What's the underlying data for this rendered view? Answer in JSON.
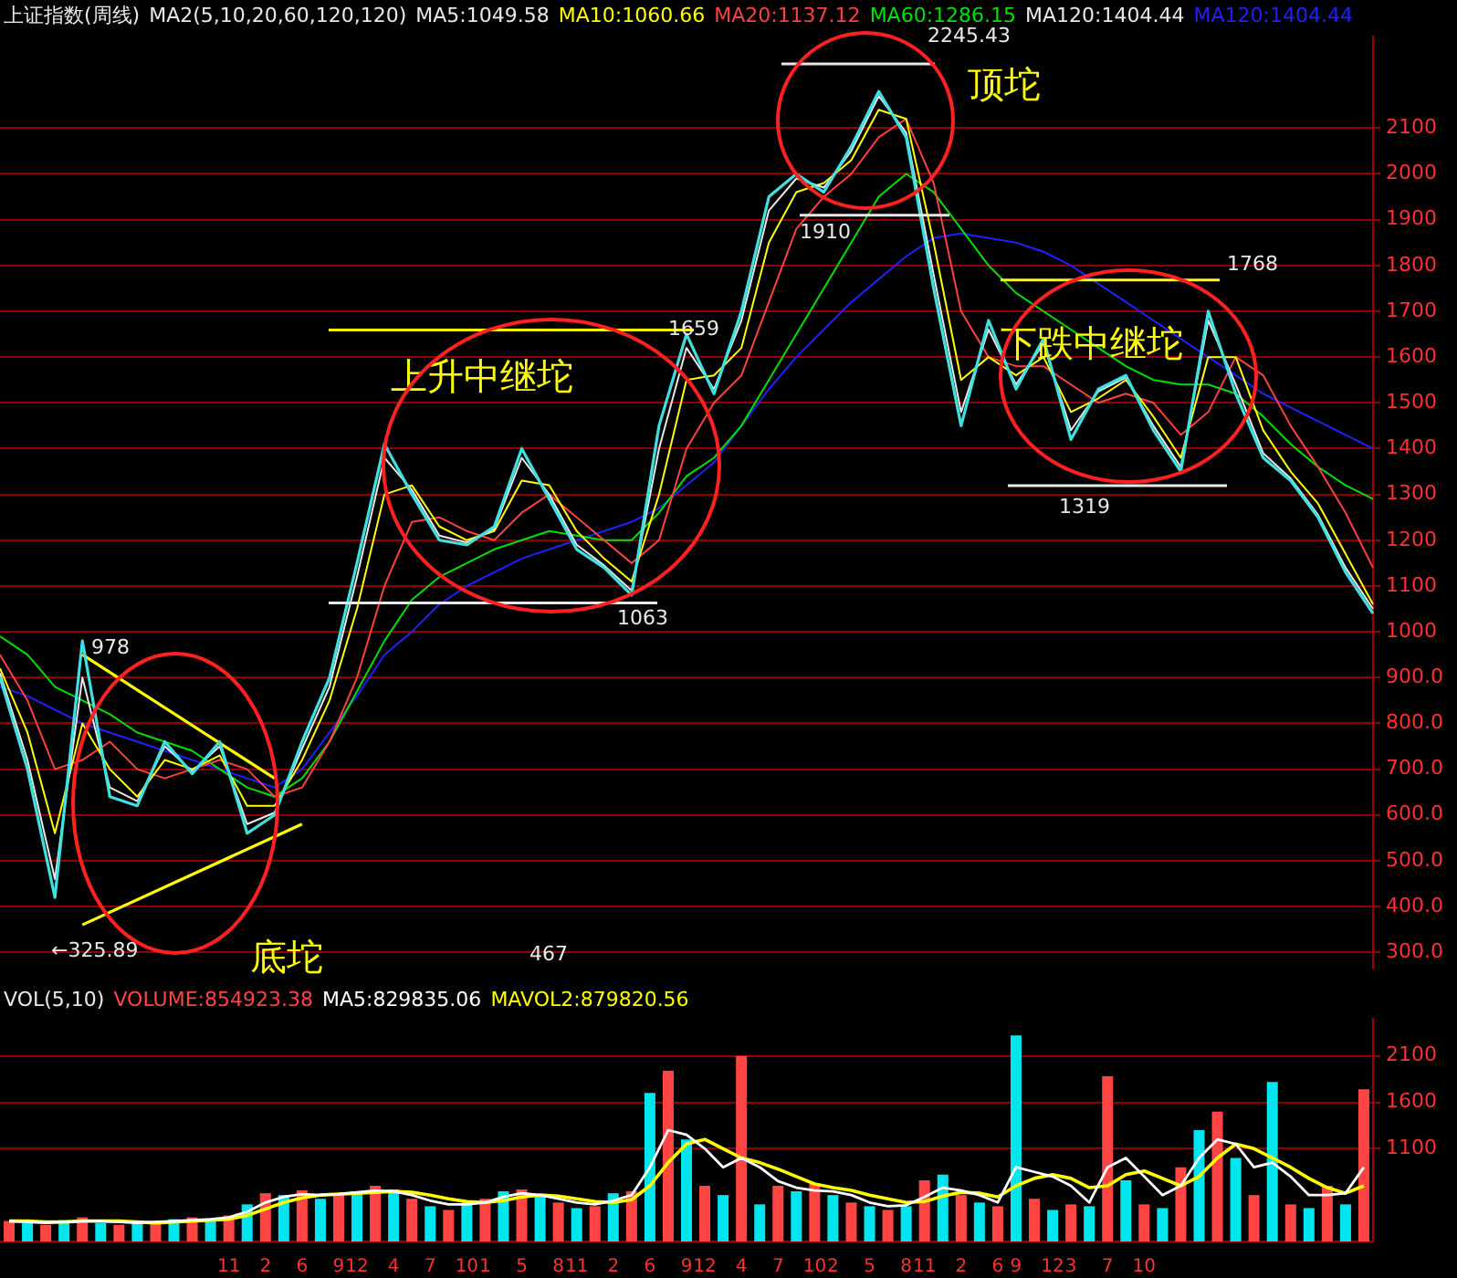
{
  "chart_data": [
    {
      "type": "line",
      "title": "上证指数(周线)",
      "subtitle": "MA2(5,10,20,60,120,120)",
      "categories": [
        null,
        null,
        null,
        null,
        null,
        null,
        null,
        null,
        null,
        null,
        null,
        null,
        null,
        null,
        null,
        null,
        null,
        null,
        null,
        null,
        null,
        null,
        null,
        null,
        null,
        null,
        null,
        null,
        null,
        null,
        null,
        null,
        null,
        null,
        null,
        null,
        null,
        null,
        null,
        null,
        null,
        null,
        null,
        null,
        null,
        null,
        null,
        null,
        null,
        null,
        null
      ],
      "series": [
        {
          "color": "#40e0e0",
          "values": [
            900,
            700,
            420,
            980,
            640,
            620,
            760,
            690,
            760,
            560,
            600,
            760,
            900,
            1150,
            1410,
            1300,
            1200,
            1190,
            1230,
            1400,
            1290,
            1180,
            1140,
            1080,
            1450,
            1650,
            1520,
            1700,
            1950,
            2000,
            1960,
            2060,
            2180,
            2080,
            1750,
            1450,
            1680,
            1530,
            1640,
            1420,
            1530,
            1560,
            1440,
            1350,
            1700,
            1520,
            1380,
            1330,
            1250,
            1130,
            1040
          ]
        },
        {
          "name": "MA5:1049.58",
          "color": "#e8e8e8",
          "values": [
            910,
            720,
            460,
            900,
            660,
            630,
            750,
            695,
            750,
            580,
            605,
            745,
            880,
            1120,
            1380,
            1310,
            1210,
            1195,
            1225,
            1380,
            1300,
            1190,
            1145,
            1090,
            1400,
            1620,
            1530,
            1680,
            1920,
            1990,
            1970,
            2050,
            2170,
            2090,
            1780,
            1480,
            1660,
            1540,
            1630,
            1440,
            1525,
            1555,
            1450,
            1360,
            1680,
            1540,
            1390,
            1335,
            1255,
            1140,
            1050
          ]
        },
        {
          "name": "MA10:1060.66",
          "color": "#ffff00",
          "values": [
            920,
            780,
            560,
            800,
            700,
            640,
            720,
            700,
            730,
            620,
            620,
            720,
            850,
            1050,
            1300,
            1320,
            1230,
            1200,
            1220,
            1330,
            1320,
            1220,
            1160,
            1110,
            1300,
            1550,
            1560,
            1620,
            1850,
            1960,
            1980,
            2030,
            2140,
            2120,
            1850,
            1550,
            1600,
            1560,
            1600,
            1480,
            1510,
            1550,
            1470,
            1380,
            1600,
            1600,
            1440,
            1350,
            1280,
            1170,
            1060
          ]
        },
        {
          "name": "MA20:1137.12",
          "color": "#ff4040",
          "values": [
            950,
            850,
            700,
            720,
            760,
            700,
            680,
            700,
            720,
            700,
            640,
            660,
            760,
            900,
            1100,
            1240,
            1250,
            1220,
            1200,
            1260,
            1300,
            1250,
            1200,
            1150,
            1200,
            1400,
            1500,
            1560,
            1720,
            1880,
            1950,
            2000,
            2080,
            2120,
            1980,
            1700,
            1600,
            1580,
            1580,
            1540,
            1500,
            1520,
            1500,
            1430,
            1480,
            1600,
            1560,
            1450,
            1360,
            1260,
            1140
          ]
        },
        {
          "name": "MA60:1286.15",
          "color": "#00e000",
          "values": [
            990,
            950,
            880,
            850,
            820,
            780,
            760,
            740,
            700,
            660,
            640,
            680,
            760,
            870,
            980,
            1070,
            1120,
            1150,
            1180,
            1200,
            1220,
            1210,
            1200,
            1200,
            1260,
            1340,
            1380,
            1450,
            1550,
            1650,
            1750,
            1850,
            1950,
            2000,
            1960,
            1880,
            1800,
            1740,
            1700,
            1660,
            1620,
            1580,
            1550,
            1540,
            1540,
            1520,
            1470,
            1410,
            1360,
            1320,
            1290
          ]
        },
        {
          "type": "line",
          "color": "#ffff00",
          "values": [
            null,
            null,
            null,
            950,
            null,
            null,
            null,
            null,
            null,
            null,
            680,
            null,
            null,
            null,
            null,
            null,
            null,
            null,
            null,
            null,
            null,
            null,
            null,
            null,
            null,
            null,
            null,
            null,
            null,
            null,
            null,
            null,
            null,
            null,
            null,
            null,
            null,
            null,
            null,
            null,
            null,
            null,
            null,
            null,
            null,
            null,
            null,
            null,
            null,
            null,
            null
          ]
        },
        {
          "type": "line",
          "color": "#ffff00",
          "values": [
            null,
            null,
            null,
            360,
            null,
            null,
            null,
            null,
            null,
            null,
            null,
            580,
            null,
            null,
            null,
            null,
            null,
            null,
            null,
            null,
            null,
            null,
            null,
            null,
            null,
            null,
            null,
            null,
            null,
            null,
            null,
            null,
            null,
            null,
            null,
            null,
            null,
            null,
            null,
            null,
            null,
            null,
            null,
            null,
            null,
            null,
            null,
            null,
            null,
            null,
            null
          ]
        },
        {
          "name": "MA120:1404.44",
          "color": "#2020ff",
          "values": [
            880,
            860,
            830,
            800,
            780,
            760,
            740,
            720,
            700,
            680,
            660,
            700,
            780,
            860,
            950,
            1000,
            1060,
            1100,
            1130,
            1160,
            1180,
            1200,
            1220,
            1240,
            1270,
            1320,
            1370,
            1450,
            1530,
            1600,
            1660,
            1720,
            1770,
            1820,
            1860,
            1870,
            1860,
            1850,
            1830,
            1800,
            1760,
            1720,
            1680,
            1640,
            1600,
            1560,
            1520,
            1490,
            1460,
            1430,
            1400
          ]
        }
      ],
      "ylim": [
        265,
        2300
      ],
      "yticks": [
        {
          "value": 300,
          "label": "300.0"
        },
        {
          "value": 400,
          "label": "400.0"
        },
        {
          "value": 500,
          "label": "500.0"
        },
        {
          "value": 600,
          "label": "600.0"
        },
        {
          "value": 700,
          "label": "700.0"
        },
        {
          "value": 800,
          "label": "800.0"
        },
        {
          "value": 900,
          "label": "900.0"
        },
        1000,
        1100,
        1200,
        1300,
        1400,
        1500,
        1600,
        1700,
        1800,
        1900,
        2000,
        2100
      ],
      "grid": "y",
      "legend": false,
      "tick_labels": "y",
      "ref_lines": [
        {
          "axis": "y",
          "value": 1659,
          "color": "#ffff00"
        },
        {
          "axis": "y",
          "value": 1063,
          "color": "#e8e8e8"
        },
        {
          "axis": "y",
          "value": 1910,
          "color": "#e8e8e8"
        },
        {
          "axis": "y",
          "value": 2240,
          "color": "#e8e8e8"
        },
        {
          "axis": "y",
          "value": 1768,
          "color": "#ffff00"
        },
        {
          "axis": "y",
          "value": 1319,
          "color": "#e8e8e8"
        }
      ],
      "annotations": [
        "MA120:1404.44",
        "978",
        "←325.89",
        {
          "text": "1063",
          "y": 1063
        },
        {
          "text": "1659",
          "y": 1659
        },
        {
          "text": "1910",
          "y": 1910
        },
        "2245.43",
        "1768",
        {
          "text": "1319",
          "y": 1319
        },
        "467",
        "底坨",
        "上升中继坨",
        "顶坨",
        "下跌中继坨"
      ]
    },
    {
      "type": "bar",
      "title": "VOL(5,10)",
      "categories": [
        null,
        null,
        null,
        null,
        null,
        null,
        null,
        null,
        null,
        null,
        null,
        null,
        "11",
        null,
        "2",
        null,
        "6",
        null,
        "9",
        "12",
        null,
        "4",
        null,
        "7",
        null,
        "10",
        "1",
        null,
        "5",
        null,
        "8",
        "11",
        null,
        "2",
        null,
        "6",
        null,
        "9",
        "12",
        null,
        "4",
        null,
        "7",
        null,
        "10",
        "2",
        null,
        "5",
        null,
        "8",
        "11",
        null,
        "2",
        null,
        "6",
        "9",
        null,
        "12",
        "3",
        null,
        "7",
        null,
        "10",
        null,
        null,
        null,
        null,
        null,
        null,
        null,
        null,
        null,
        null,
        null,
        null
      ],
      "series": [
        {
          "name": "VOLUME:854923.38",
          "colors": [
            "#ff4444",
            "#00e5ee",
            "#ff4444",
            "#00e5ee",
            "#ff4444",
            "#00e5ee",
            "#ff4444",
            "#00e5ee",
            "#ff4444",
            "#00e5ee",
            "#ff4444",
            "#00e5ee",
            "#ff4444",
            "#00e5ee",
            "#ff4444",
            "#00e5ee",
            "#ff4444",
            "#00e5ee",
            "#ff4444",
            "#00e5ee",
            "#ff4444",
            "#00e5ee",
            "#ff4444",
            "#00e5ee",
            "#ff4444",
            "#00e5ee",
            "#ff4444",
            "#00e5ee",
            "#ff4444",
            "#00e5ee",
            "#ff4444",
            "#00e5ee",
            "#ff4444",
            "#00e5ee",
            "#ff4444",
            "#00e5ee",
            "#ff4444",
            "#00e5ee",
            "#ff4444",
            "#00e5ee",
            "#ff4444",
            "#00e5ee",
            "#ff4444",
            "#00e5ee",
            "#ff4444",
            "#00e5ee",
            "#ff4444",
            "#00e5ee",
            "#ff4444",
            "#00e5ee",
            "#ff4444",
            "#00e5ee",
            "#ff4444",
            "#00e5ee",
            "#ff4444",
            "#00e5ee",
            "#ff4444",
            "#00e5ee",
            "#ff4444",
            "#00e5ee",
            "#ff4444",
            "#00e5ee",
            "#ff4444",
            "#00e5ee",
            "#ff4444",
            "#00e5ee",
            "#ff4444",
            "#00e5ee",
            "#ff4444",
            "#00e5ee",
            "#ff4444",
            "#00e5ee",
            "#ff4444",
            "#00e5ee",
            "#ff4444"
          ],
          "values": [
            320,
            300,
            280,
            330,
            360,
            300,
            280,
            300,
            320,
            340,
            360,
            330,
            380,
            500,
            620,
            600,
            650,
            560,
            600,
            640,
            700,
            660,
            560,
            480,
            440,
            520,
            560,
            640,
            660,
            600,
            520,
            460,
            480,
            620,
            640,
            1700,
            1940,
            1200,
            700,
            600,
            2100,
            500,
            700,
            640,
            720,
            600,
            520,
            480,
            440,
            480,
            760,
            820,
            600,
            520,
            480,
            2320,
            560,
            440,
            500,
            480,
            1880,
            760,
            500,
            460,
            900,
            1300,
            1500,
            1000,
            600,
            1820,
            500,
            460,
            700,
            500,
            1740
          ]
        },
        {
          "type": "line",
          "name": "MA5:829835.06",
          "color": "#ffffff",
          "values": [
            320,
            310,
            300,
            310,
            320,
            320,
            310,
            300,
            310,
            320,
            330,
            340,
            360,
            420,
            520,
            580,
            610,
            600,
            610,
            630,
            650,
            640,
            600,
            540,
            500,
            500,
            520,
            580,
            620,
            600,
            560,
            520,
            500,
            540,
            600,
            900,
            1300,
            1250,
            1100,
            900,
            1000,
            900,
            750,
            680,
            650,
            640,
            600,
            520,
            480,
            490,
            580,
            680,
            650,
            600,
            520,
            900,
            850,
            800,
            700,
            520,
            900,
            1000,
            800,
            600,
            700,
            1000,
            1200,
            1150,
            900,
            950,
            800,
            600,
            600,
            620,
            900
          ]
        },
        {
          "type": "line",
          "name": "MAVOL2:879820.56",
          "color": "#ffff00",
          "values": [
            320,
            320,
            310,
            310,
            320,
            320,
            320,
            310,
            300,
            310,
            320,
            330,
            340,
            380,
            450,
            520,
            570,
            600,
            610,
            620,
            630,
            640,
            630,
            600,
            560,
            530,
            520,
            540,
            580,
            600,
            590,
            560,
            530,
            520,
            550,
            700,
            950,
            1150,
            1200,
            1100,
            1000,
            950,
            880,
            800,
            720,
            680,
            650,
            600,
            560,
            520,
            530,
            590,
            630,
            620,
            580,
            700,
            780,
            820,
            780,
            680,
            700,
            820,
            860,
            780,
            700,
            800,
            1000,
            1150,
            1100,
            1000,
            900,
            780,
            680,
            620,
            700
          ]
        }
      ],
      "ylim": [
        100,
        2500
      ],
      "yticks": [
        1100,
        1600,
        2100
      ],
      "grid": "y",
      "legend": false
    }
  ]
}
